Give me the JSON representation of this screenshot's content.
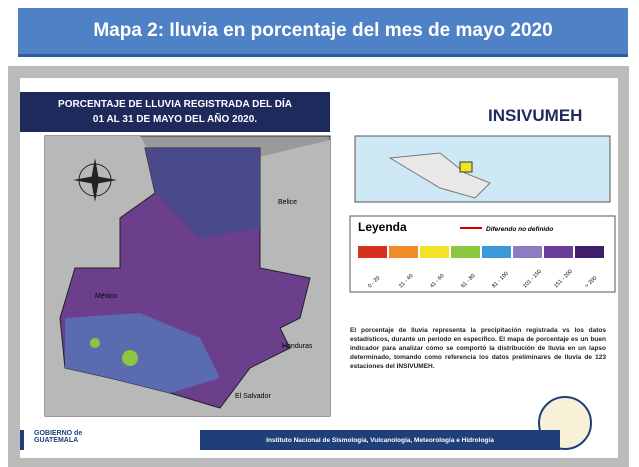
{
  "header": {
    "title": "Mapa 2: Iluvia en porcentaje del mes de mayo 2020"
  },
  "slide": {
    "title_line1": "PORCENTAJE DE LLUVIA REGISTRADA DEL DÍA",
    "title_line2": "01 AL 31 DE MAYO DEL AÑO 2020.",
    "institution_logo": "INSIVUMEH",
    "map_labels": {
      "mexico": "México",
      "belize": "Belice",
      "honduras": "Honduras",
      "el_salvador": "El Salvador"
    },
    "legend": {
      "title": "Leyenda",
      "border_note": "Diferendo no definido",
      "items": [
        {
          "label": "0 - 20",
          "color": "#d7301f"
        },
        {
          "label": "21 - 40",
          "color": "#f08c2a"
        },
        {
          "label": "41 - 60",
          "color": "#f2e22a"
        },
        {
          "label": "61 - 80",
          "color": "#8cc63f"
        },
        {
          "label": "81 - 100",
          "color": "#3a9ad9"
        },
        {
          "label": "101 - 150",
          "color": "#8e7cc3"
        },
        {
          "label": "151 - 200",
          "color": "#6a3d9a"
        },
        {
          "label": "> 200",
          "color": "#3f1f6b"
        }
      ]
    },
    "description": "El porcentaje de lluvia representa la precipitación registrada vs los datos estadísticos, durante un período en específico. El mapa de porcentaje es un buen indicador para analizar cómo se comportó la distribución de lluvia en un lapso determinado, tomando como referencia los datos preliminares de lluvia de 123 estaciones del INSIVUMEH.",
    "government": "GOBIERNO de GUATEMALA",
    "footer": "Instituto Nacional de Sismología, Vulcanología, Meteorología e Hidrología"
  }
}
